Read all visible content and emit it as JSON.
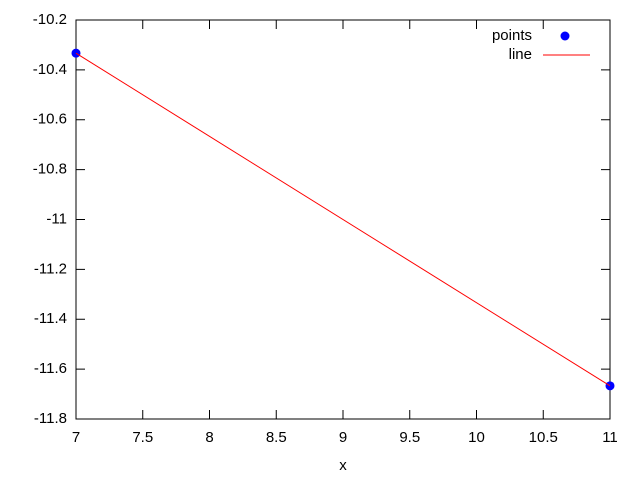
{
  "chart_data": {
    "type": "line",
    "xlabel": "x",
    "series": [
      {
        "name": "points",
        "style": "points",
        "color": "#0000ff",
        "x": [
          7,
          11
        ],
        "values": [
          -10.333,
          -11.667
        ]
      },
      {
        "name": "line",
        "style": "line",
        "color": "#ff0000",
        "x": [
          7,
          11
        ],
        "values": [
          -10.333,
          -11.667
        ]
      }
    ],
    "xlim": [
      7,
      11
    ],
    "xticks": [
      7,
      7.5,
      8,
      8.5,
      9,
      9.5,
      10,
      10.5,
      11
    ],
    "ylim": [
      -11.8,
      -10.2
    ],
    "yticks": [
      -10.2,
      -10.4,
      -10.6,
      -10.8,
      -11,
      -11.2,
      -11.4,
      -11.6,
      -11.8
    ],
    "legend": "top right"
  }
}
